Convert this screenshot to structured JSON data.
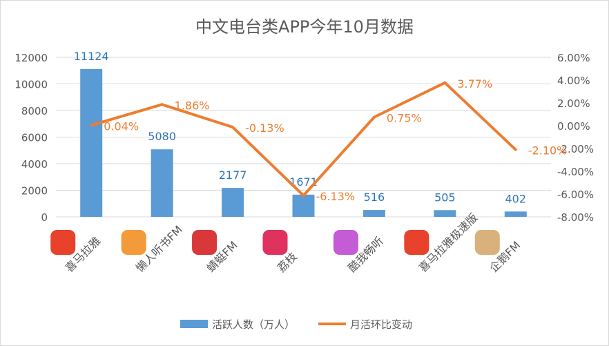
{
  "chart_data": {
    "type": "bar+line",
    "title": "中文电台类APP今年10月数据",
    "categories": [
      "喜马拉雅",
      "懒人听书FM",
      "蜻蜓FM",
      "荔枝",
      "酷我畅听",
      "喜马拉雅极速版",
      "企鹅FM"
    ],
    "category_icons": [
      "ximalaya-icon",
      "lanren-icon",
      "qingting-icon",
      "lizhi-icon",
      "kuwo-icon",
      "ximalaya-lite-icon",
      "qie-fm-icon"
    ],
    "icon_colors": [
      "#e8412c",
      "#f39a3b",
      "#d9383a",
      "#e0325f",
      "#c45cd6",
      "#e8412c",
      "#d8b27a"
    ],
    "series": [
      {
        "name": "活跃人数（万人）",
        "type": "bar",
        "axis": "left",
        "color": "#5b9bd5",
        "values": [
          11124,
          5080,
          2177,
          1671,
          516,
          505,
          402
        ],
        "labels": [
          "11124",
          "5080",
          "2177",
          "1671",
          "516",
          "505",
          "402"
        ]
      },
      {
        "name": "月活环比变动",
        "type": "line",
        "axis": "right",
        "color": "#ed7d31",
        "values": [
          0.04,
          1.86,
          -0.13,
          -6.13,
          0.75,
          3.77,
          -2.1
        ],
        "labels": [
          "0.04%",
          "1.86%",
          "-0.13%",
          "-6.13%",
          "0.75%",
          "3.77%",
          "-2.10%"
        ]
      }
    ],
    "left_axis": {
      "ylim": [
        0,
        12000
      ],
      "ticks": [
        "0",
        "2000",
        "4000",
        "6000",
        "8000",
        "10000",
        "12000"
      ]
    },
    "right_axis": {
      "ylim": [
        -8,
        6
      ],
      "ticks": [
        "-8.00%",
        "-6.00%",
        "-4.00%",
        "-2.00%",
        "0.00%",
        "2.00%",
        "4.00%",
        "6.00%"
      ]
    },
    "grid": true,
    "legend": "bottom"
  }
}
